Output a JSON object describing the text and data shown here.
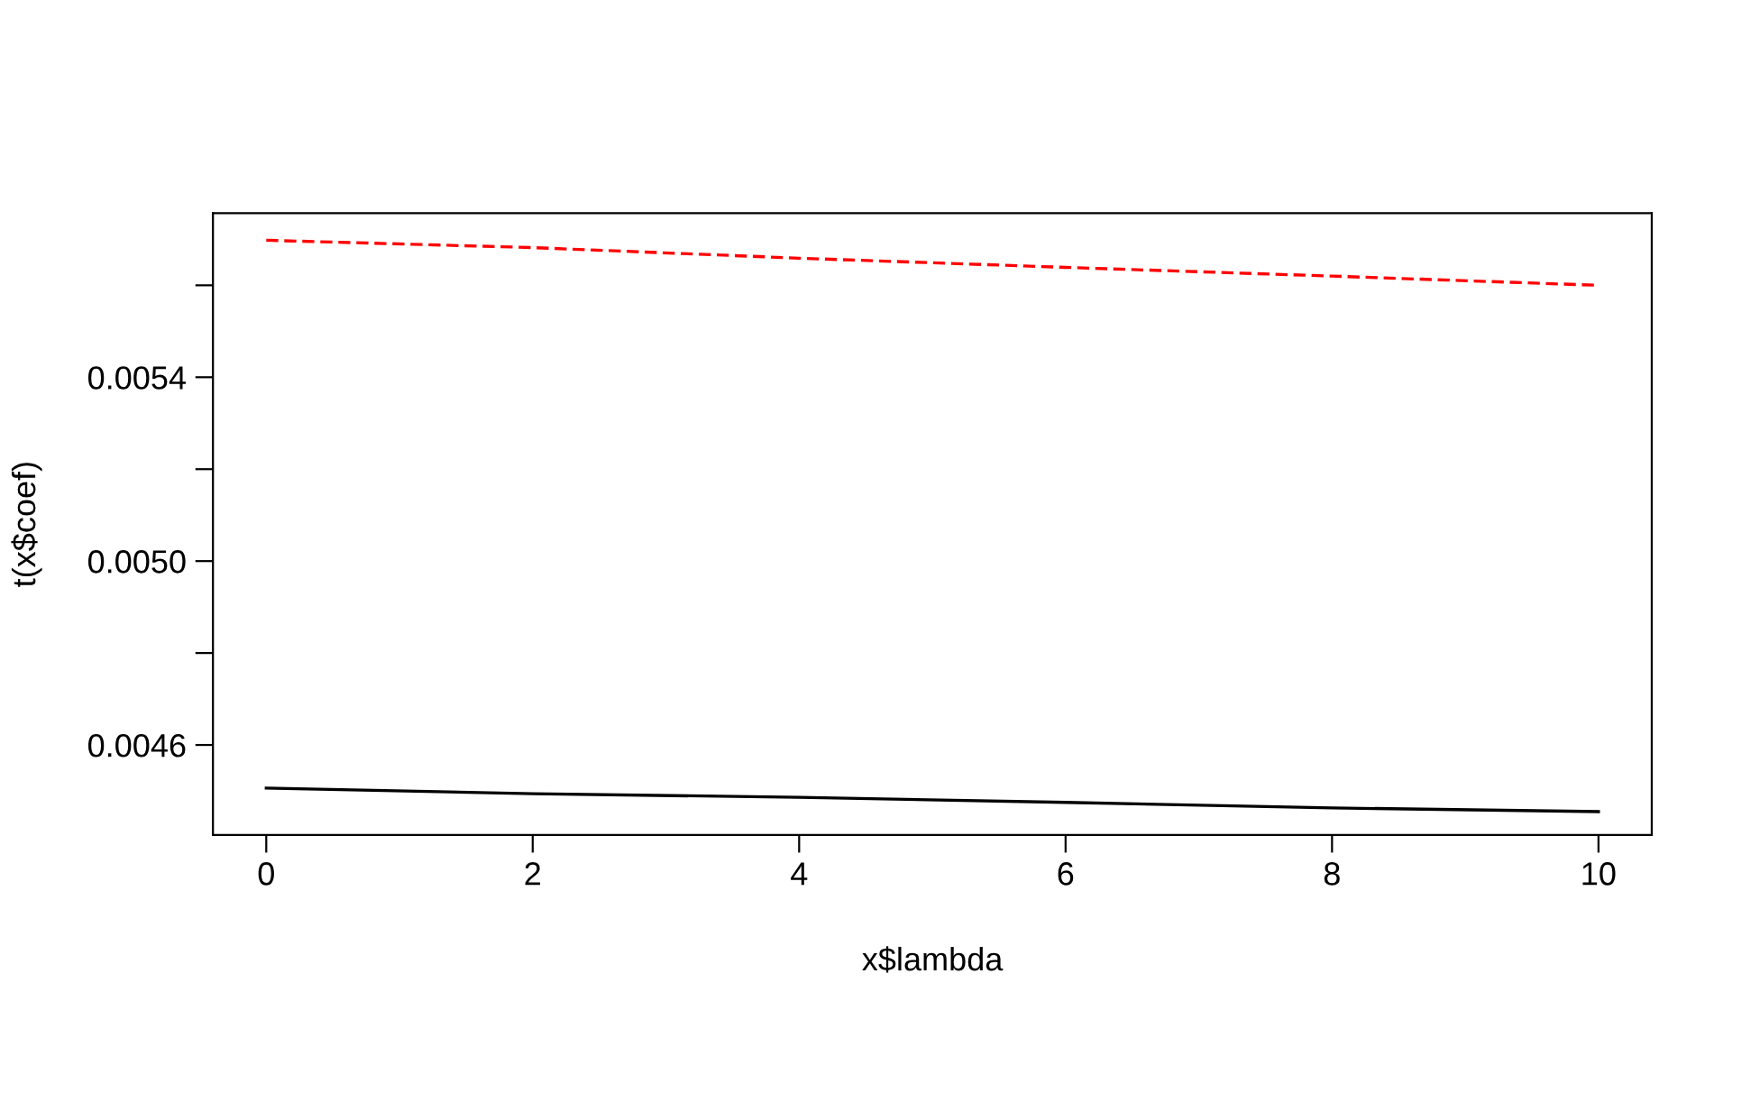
{
  "chart_data": {
    "type": "line",
    "xlabel": "x$lambda",
    "ylabel": "t(x$coef)",
    "x": [
      0,
      2,
      4,
      6,
      8,
      10
    ],
    "series": [
      {
        "color": "#000000",
        "line_style": "solid",
        "values": [
          0.004506,
          0.004494,
          0.004486,
          0.004475,
          0.004463,
          0.004455
        ]
      },
      {
        "color": "#ff0000",
        "line_style": "dashed",
        "values": [
          0.005698,
          0.005682,
          0.005659,
          0.005639,
          0.00562,
          0.0056
        ]
      }
    ],
    "xlim": [
      -0.4,
      10.4
    ],
    "xticks": [
      0,
      2,
      4,
      6,
      8,
      10
    ],
    "ylim": [
      0.004404,
      0.005757
    ],
    "yticks": [
      {
        "value": 0.0046,
        "label": "0.0046"
      },
      {
        "value": 0.0048,
        "label": null
      },
      {
        "value": 0.005,
        "label": "0.0050"
      },
      {
        "value": 0.0052,
        "label": null
      },
      {
        "value": 0.0054,
        "label": "0.0054"
      },
      {
        "value": 0.0056,
        "label": null
      }
    ],
    "grid": false,
    "legend": false
  }
}
